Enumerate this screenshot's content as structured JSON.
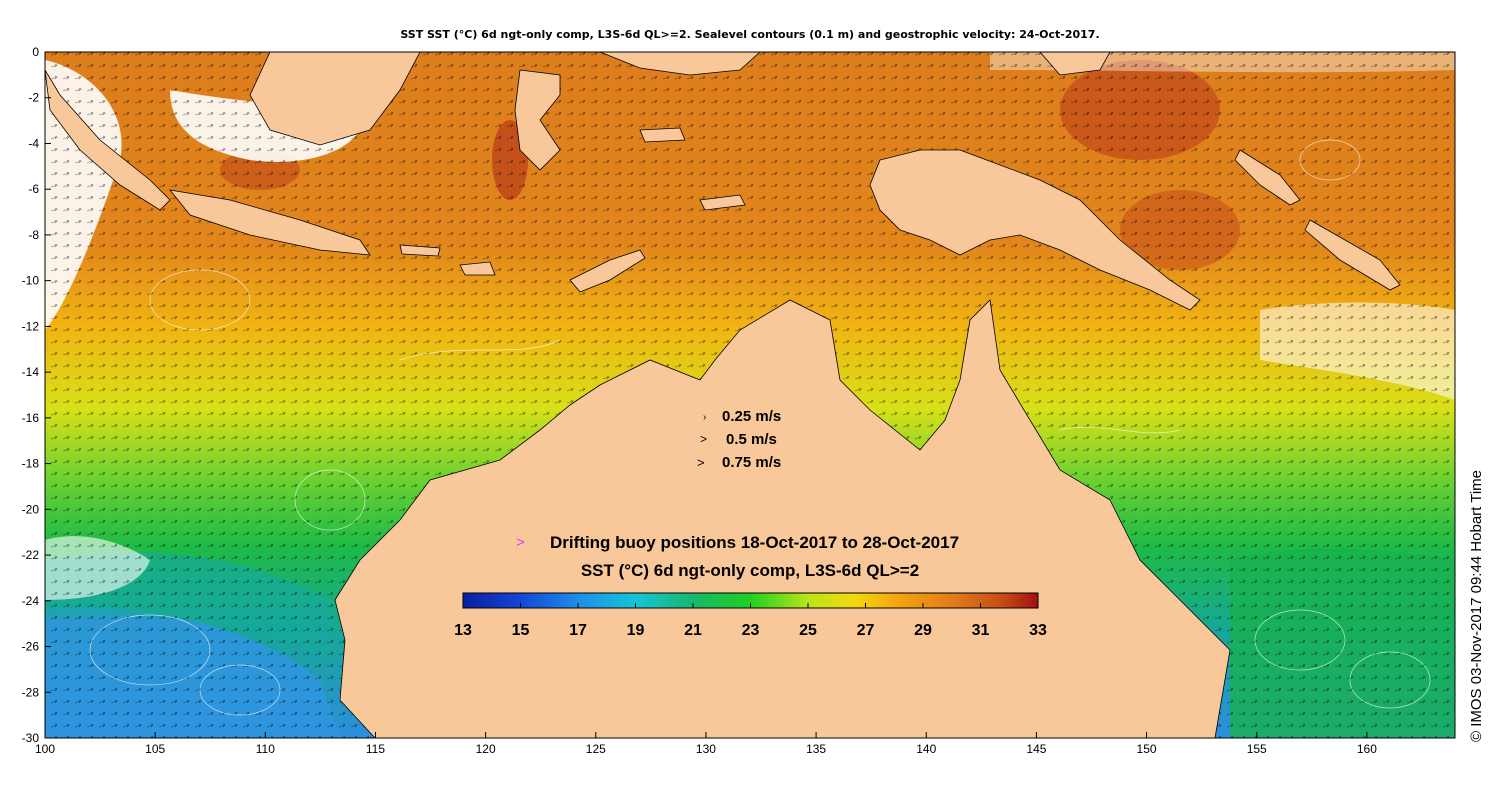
{
  "title": "SST SST (°C) 6d ngt-only comp, L3S-6d QL>=2. Sealevel contours (0.1 m) and geostrophic velocity: 24-Oct-2017.",
  "colors": {
    "land": "#f9c89a",
    "ocean_warm": "#de7f1e",
    "ocean_hot": "#c24a12",
    "ocean_mid": "#f3b312",
    "ocean_yellow": "#d9e11a",
    "ocean_green": "#1dbf44",
    "ocean_teal": "#14a89e",
    "ocean_blue": "#2b8fdf",
    "buoy_marker": "#e040ff"
  },
  "axes": {
    "x_ticks": [
      "100",
      "105",
      "110",
      "115",
      "120",
      "125",
      "130",
      "135",
      "140",
      "145",
      "150",
      "155",
      "160"
    ],
    "y_ticks": [
      "0",
      "-2",
      "-4",
      "-6",
      "-8",
      "-10",
      "-12",
      "-14",
      "-16",
      "-18",
      "-20",
      "-22",
      "-24",
      "-26",
      "-28",
      "-30"
    ],
    "lon_range": [
      100,
      164
    ],
    "lat_range": [
      -30,
      0
    ]
  },
  "velocity_legend": [
    {
      "label": "0.25 m/s",
      "glyph": "›"
    },
    {
      "label": "0.5 m/s",
      "glyph": ">"
    },
    {
      "label": "0.75 m/s",
      "glyph": ">"
    }
  ],
  "buoy_legend": {
    "marker": ">",
    "label": "Drifting buoy positions 18-Oct-2017 to 28-Oct-2017"
  },
  "colorbar": {
    "title": "SST (°C) 6d ngt-only comp, L3S-6d QL>=2",
    "ticks": [
      "13",
      "15",
      "17",
      "19",
      "21",
      "23",
      "25",
      "27",
      "29",
      "31",
      "33"
    ]
  },
  "credit": "© IMOS 03-Nov-2017 09:44 Hobart Time"
}
